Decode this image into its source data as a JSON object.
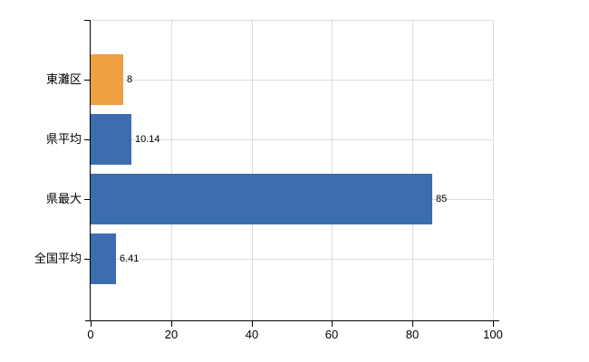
{
  "chart_data": {
    "type": "bar",
    "orientation": "horizontal",
    "title": "",
    "xlabel": "",
    "ylabel": "",
    "categories": [
      "東灘区",
      "県平均",
      "県最大",
      "全国平均"
    ],
    "values": [
      8,
      10.14,
      85,
      6.41
    ],
    "value_labels": [
      "8",
      "10.14",
      "85",
      "6.41"
    ],
    "bar_colors": [
      "#EEA042",
      "#3C6EAF",
      "#3C6EAF",
      "#3C6EAF"
    ],
    "xlim": [
      0,
      100
    ],
    "x_ticks": [
      0,
      20,
      40,
      60,
      80,
      100
    ],
    "x_tick_labels": [
      "0",
      "20",
      "40",
      "60",
      "80",
      "100"
    ],
    "grid": true,
    "legend_position": "none",
    "colors": {
      "background": "#FFFFFF",
      "axis": "#000000",
      "grid": "#DCDCDC",
      "text": "#000000",
      "orange_series": "#EEA042",
      "blue_series": "#3C6EAF"
    }
  }
}
